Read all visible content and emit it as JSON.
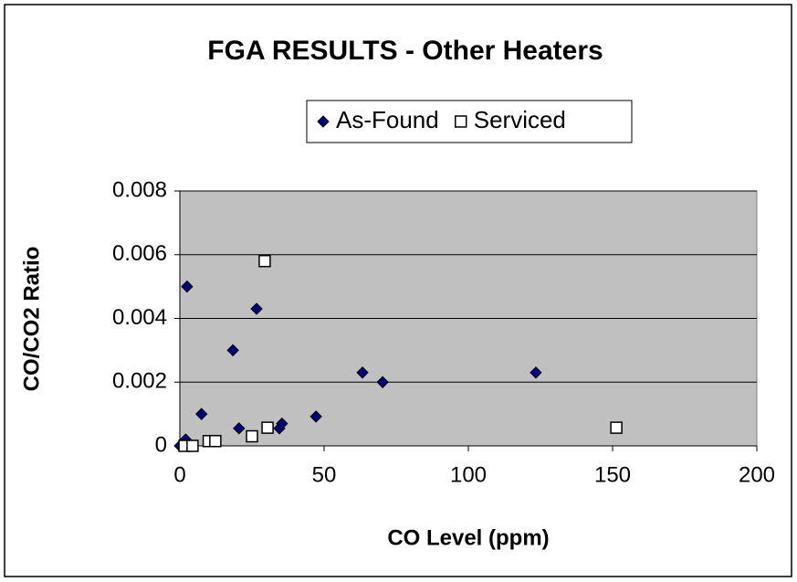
{
  "chart_data": {
    "type": "scatter",
    "title": "FGA RESULTS - Other Heaters",
    "x_label": "CO Level (ppm)",
    "y_label": "CO/CO2 Ratio",
    "xlim": [
      0,
      200
    ],
    "xticks": [
      0,
      50,
      100,
      150,
      200
    ],
    "ylim": [
      0,
      0.008
    ],
    "yticks": [
      0,
      0.002,
      0.004,
      0.006,
      0.008
    ],
    "grid": true,
    "legend": "top",
    "series": [
      {
        "name": "As-Found",
        "color": "#000080",
        "marker": "diamond",
        "x": [
          0,
          2,
          2.5,
          7.5,
          18.4,
          26.6,
          20.5,
          34.5,
          35.4,
          47.2,
          63.3,
          70.3,
          123.4
        ],
        "values": [
          0,
          0.0002,
          0.005,
          0.001,
          0.003,
          0.0043,
          0.00055,
          0.00055,
          0.0007,
          0.00092,
          0.0023,
          0.002,
          0.0023
        ]
      },
      {
        "name": "Serviced",
        "color": "#ffffff",
        "marker": "square",
        "x": [
          1.6,
          4.4,
          10,
          12.3,
          25,
          29.4,
          30.4,
          151.3
        ],
        "values": [
          0,
          0,
          0.00015,
          0.00015,
          0.0003,
          0.0058,
          0.00057,
          0.00057
        ]
      }
    ]
  }
}
